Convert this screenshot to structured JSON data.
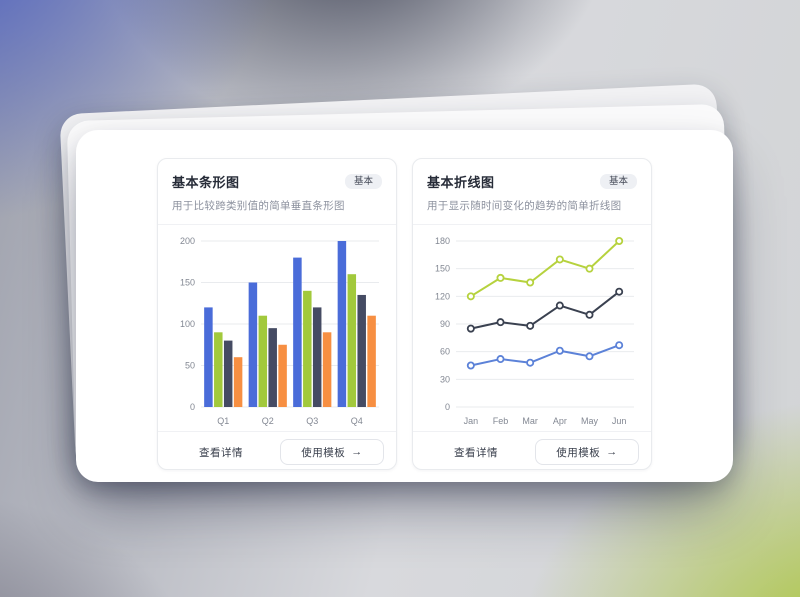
{
  "cards": [
    {
      "title": "基本条形图",
      "badge": "基本",
      "subtitle": "用于比较跨类别值的简单垂直条形图",
      "footer": {
        "details_label": "查看详情",
        "use_template_label": "使用模板",
        "arrow": "→"
      }
    },
    {
      "title": "基本折线图",
      "badge": "基本",
      "subtitle": "用于显示随时间变化的趋势的简单折线图",
      "footer": {
        "details_label": "查看详情",
        "use_template_label": "使用模板",
        "arrow": "→"
      }
    }
  ],
  "chart_data": [
    {
      "type": "bar",
      "title": "基本条形图",
      "categories": [
        "Q1",
        "Q2",
        "Q3",
        "Q4"
      ],
      "series": [
        {
          "name": "series-blue",
          "color": "#4a6cd9",
          "values": [
            120,
            150,
            180,
            200
          ]
        },
        {
          "name": "series-green",
          "color": "#a2c93c",
          "values": [
            90,
            110,
            140,
            160
          ]
        },
        {
          "name": "series-navy",
          "color": "#454b63",
          "values": [
            80,
            95,
            120,
            135
          ]
        },
        {
          "name": "series-orange",
          "color": "#f78f42",
          "values": [
            60,
            75,
            90,
            110
          ]
        }
      ],
      "ylim": [
        0,
        200
      ],
      "yticks": [
        0,
        50,
        100,
        150,
        200
      ],
      "grid": true,
      "legend": "none",
      "grid_color": "#e9ebee",
      "tick_color": "#838893"
    },
    {
      "type": "line",
      "title": "基本折线图",
      "categories": [
        "Jan",
        "Feb",
        "Mar",
        "Apr",
        "May",
        "Jun"
      ],
      "series": [
        {
          "name": "series-green",
          "color": "#b6d23e",
          "values": [
            120,
            140,
            135,
            160,
            150,
            180
          ]
        },
        {
          "name": "series-navy",
          "color": "#3a4150",
          "values": [
            85,
            92,
            88,
            110,
            100,
            125
          ]
        },
        {
          "name": "series-blue",
          "color": "#5c82d8",
          "values": [
            45,
            52,
            48,
            61,
            55,
            67
          ]
        }
      ],
      "ylim": [
        0,
        180
      ],
      "yticks": [
        0,
        30,
        60,
        90,
        120,
        150,
        180
      ],
      "grid": true,
      "legend": "none",
      "marker": "open-circle",
      "grid_color": "#e9ebee",
      "tick_color": "#838893"
    }
  ]
}
